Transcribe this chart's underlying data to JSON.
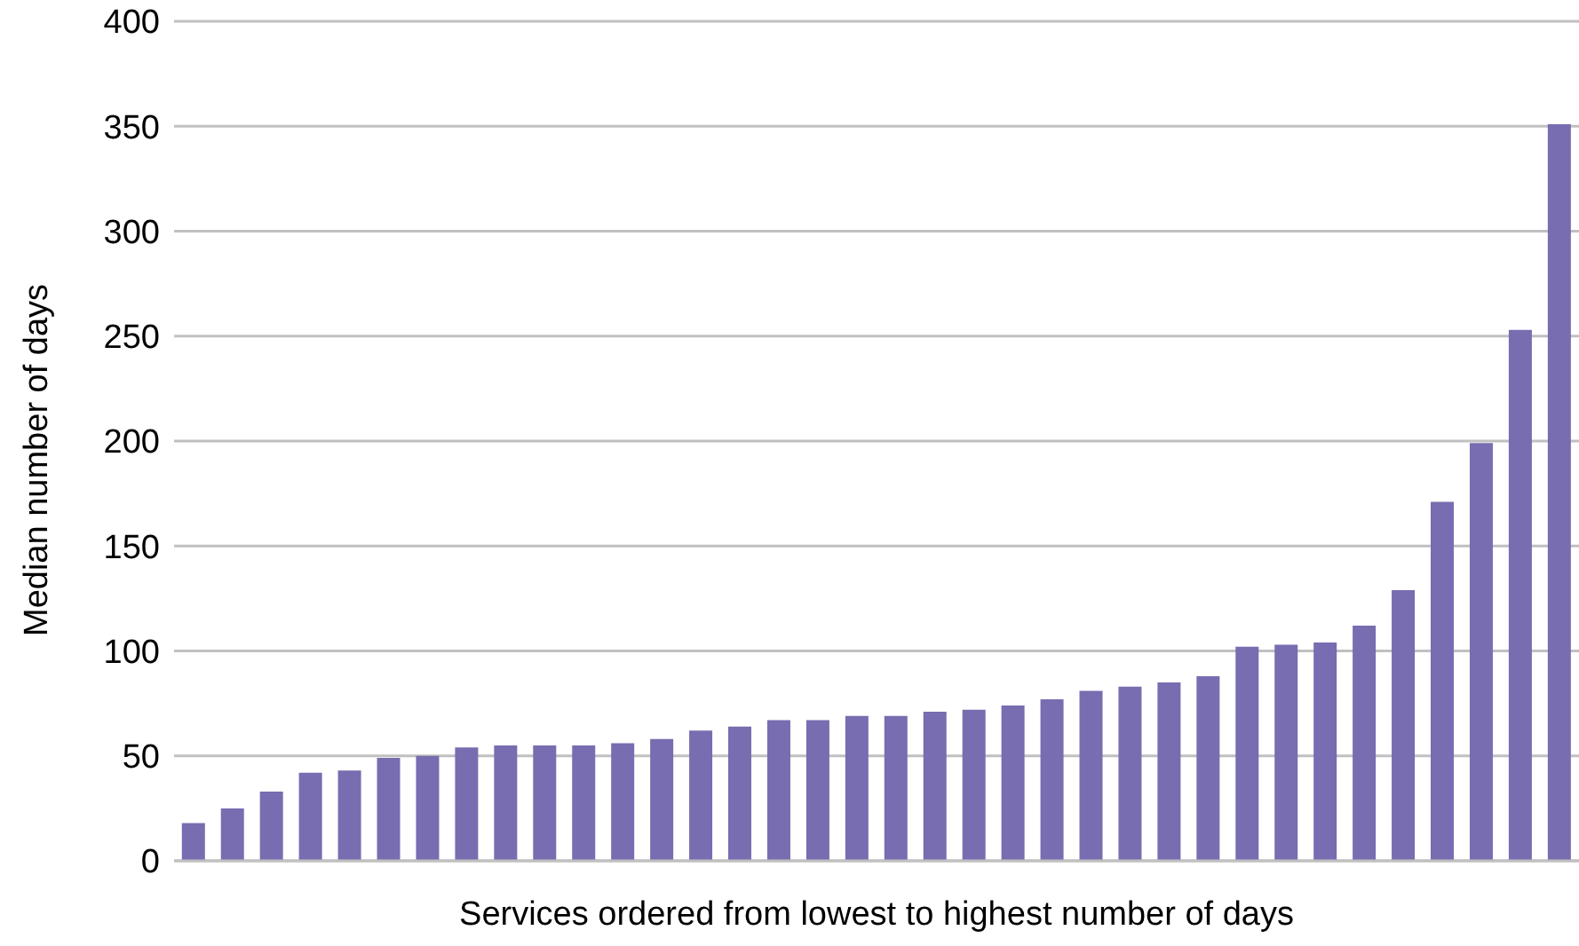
{
  "chart_data": {
    "type": "bar",
    "xlabel": "Services ordered from lowest to highest number of days",
    "ylabel": "Median number of days",
    "categories": [
      null,
      null,
      null,
      null,
      null,
      null,
      null,
      null,
      null,
      null,
      null,
      null,
      null,
      null,
      null,
      null,
      null,
      null,
      null,
      null,
      null,
      null,
      null,
      null,
      null,
      null,
      null,
      null,
      null,
      null,
      null,
      null,
      null,
      null,
      null,
      null
    ],
    "values": [
      18,
      25,
      33,
      42,
      43,
      49,
      50,
      54,
      55,
      55,
      55,
      56,
      58,
      62,
      64,
      67,
      67,
      69,
      69,
      71,
      72,
      74,
      77,
      81,
      83,
      85,
      88,
      102,
      103,
      104,
      112,
      129,
      171,
      199,
      253,
      351
    ],
    "color": "#776db0",
    "ylim": [
      0,
      400
    ],
    "yticks": [
      0,
      50,
      100,
      150,
      200,
      250,
      300,
      350,
      400
    ],
    "grid": "y"
  }
}
